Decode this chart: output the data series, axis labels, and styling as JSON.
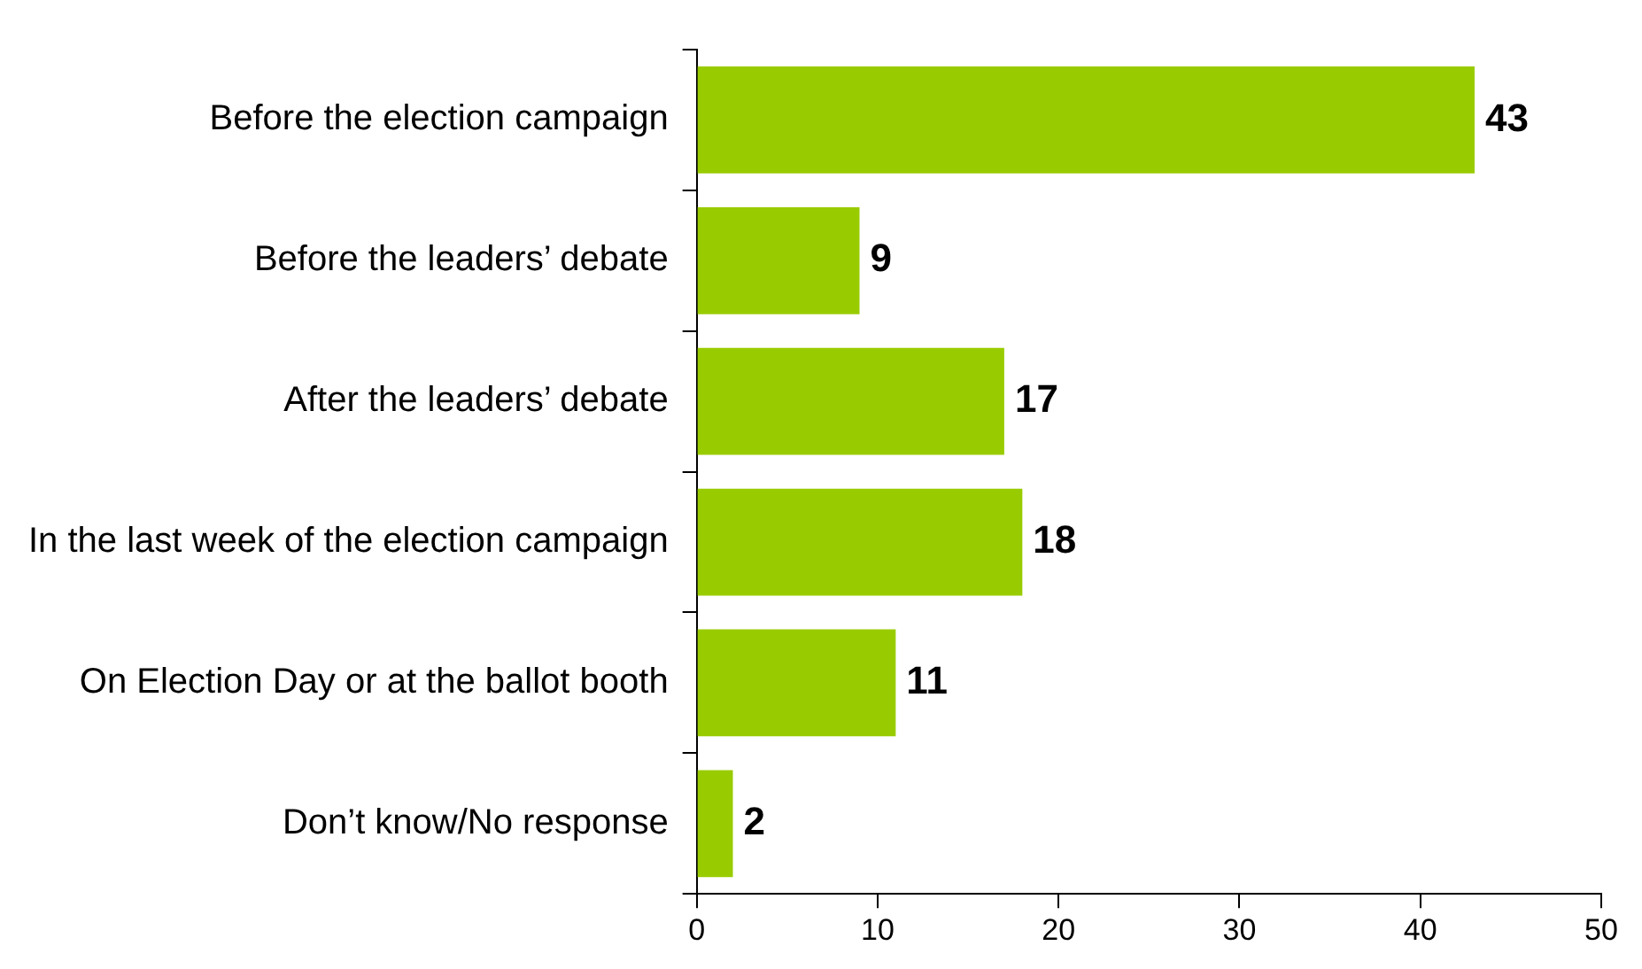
{
  "chart_data": {
    "type": "bar",
    "orientation": "horizontal",
    "categories": [
      "Before the election campaign",
      "Before the leaders’ debate",
      "After the leaders’ debate",
      "In the last week of the election campaign",
      "On Election Day or at the ballot booth",
      "Don’t know/No response"
    ],
    "values": [
      43,
      9,
      17,
      18,
      11,
      2
    ],
    "color": "#99cc00",
    "xlim": [
      0,
      50
    ],
    "xticks": [
      0,
      10,
      20,
      30,
      40,
      50
    ],
    "grid": false,
    "legend": false,
    "data_labels": true
  }
}
